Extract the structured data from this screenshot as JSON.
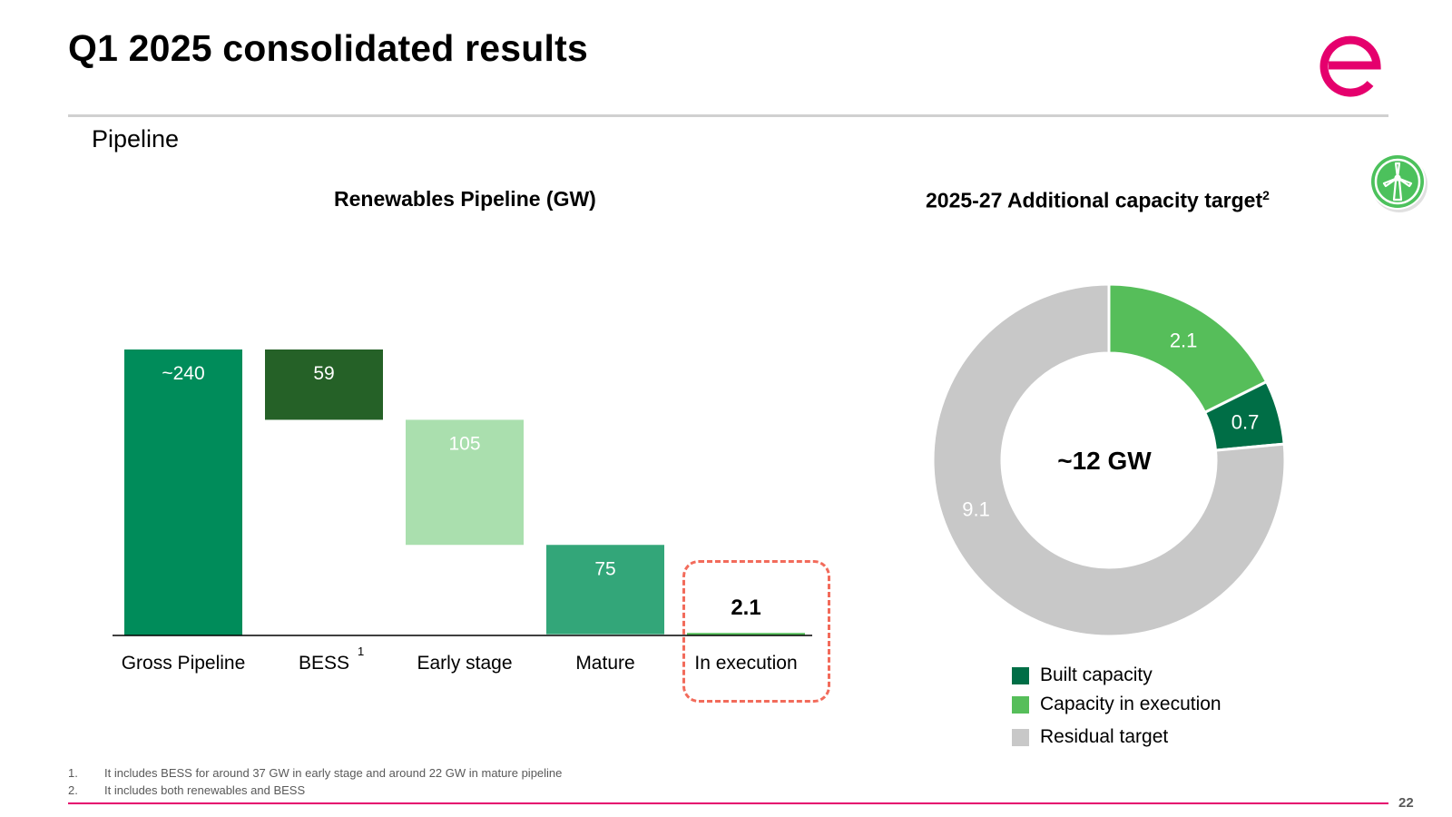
{
  "header": {
    "title": "Q1 2025 consolidated results",
    "section": "Pipeline"
  },
  "colors": {
    "brand_accent": "#e5006d",
    "rule_gray": "#d0d0d0",
    "exec_highlight": "#f26b5b",
    "wind_icon_green": "#4cc15c"
  },
  "icons": [
    "enel-logo-icon",
    "wind-turbine-icon"
  ],
  "chart_data": [
    {
      "type": "bar",
      "subtype": "waterfall",
      "title": "Renewables Pipeline (GW)",
      "categories": [
        "Gross Pipeline",
        "BESS",
        "Early stage",
        "Mature",
        "In execution"
      ],
      "category_footnotes": [
        "",
        "1",
        "",
        "",
        ""
      ],
      "values": [
        240,
        59,
        105,
        75,
        2.1
      ],
      "value_labels": [
        "~240",
        "59",
        "105",
        "75",
        "2.1"
      ],
      "bar_kind": [
        "total",
        "decrease",
        "decrease",
        "decrease",
        "total"
      ],
      "colors": [
        "#008c5a",
        "#256127",
        "#aadfae",
        "#33a679",
        "#56be5a"
      ],
      "label_colors": [
        "#ffffff",
        "#ffffff",
        "#ffffff",
        "#ffffff",
        "#000000"
      ],
      "highlight": "In execution",
      "ylim": [
        0,
        240
      ],
      "grid": false
    },
    {
      "type": "pie",
      "subtype": "donut",
      "title": "2025-27 Additional capacity target",
      "title_superscript": "2",
      "center_label": "~12 GW",
      "slices": [
        {
          "label": "Capacity in execution",
          "value": 2.1,
          "display": "2.1",
          "color": "#56be5a"
        },
        {
          "label": "Built capacity",
          "value": 0.7,
          "display": "0.7",
          "color": "#006e46"
        },
        {
          "label": "Residual target",
          "value": 9.1,
          "display": "9.1",
          "color": "#c8c8c8"
        }
      ],
      "legend": [
        {
          "label": "Built capacity",
          "color": "#006e46"
        },
        {
          "label": "Capacity in execution",
          "color": "#56be5a"
        },
        {
          "label": "Residual target",
          "color": "#c8c8c8"
        }
      ],
      "legend_position": "bottom"
    }
  ],
  "footnotes": [
    {
      "num": "1.",
      "text": "It includes BESS for around 37 GW in early stage and around 22 GW in mature pipeline"
    },
    {
      "num": "2.",
      "text": "It includes both renewables and BESS"
    }
  ],
  "page_number": "22"
}
